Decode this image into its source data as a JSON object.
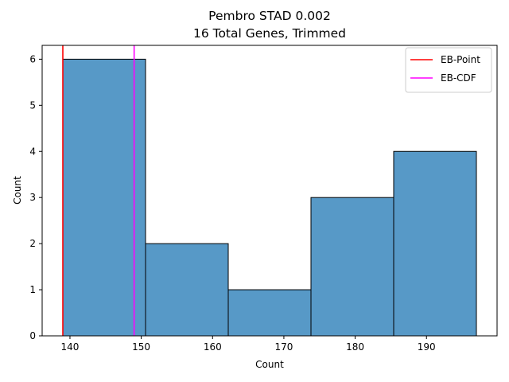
{
  "chart_data": {
    "type": "bar",
    "title_lines": [
      "Pembro STAD 0.002",
      "16 Total Genes, Trimmed"
    ],
    "xlabel": "Count",
    "ylabel": "Count",
    "bins": [
      {
        "start": 139.0,
        "end": 150.6,
        "count": 6
      },
      {
        "start": 150.6,
        "end": 162.2,
        "count": 2
      },
      {
        "start": 162.2,
        "end": 173.8,
        "count": 1
      },
      {
        "start": 173.8,
        "end": 185.4,
        "count": 3
      },
      {
        "start": 185.4,
        "end": 197.0,
        "count": 4
      }
    ],
    "xlim": [
      136.1,
      199.9
    ],
    "ylim": [
      0,
      6.3
    ],
    "xticks": [
      140,
      150,
      160,
      170,
      180,
      190
    ],
    "yticks": [
      0,
      1,
      2,
      3,
      4,
      5,
      6
    ],
    "bar_color": "#5799c7",
    "vlines": [
      {
        "name": "EB-Point",
        "x": 139.0,
        "color": "#ff0000"
      },
      {
        "name": "EB-CDF",
        "x": 149.0,
        "color": "#ff00ff"
      }
    ],
    "legend_position": "top-right",
    "grid": false
  }
}
